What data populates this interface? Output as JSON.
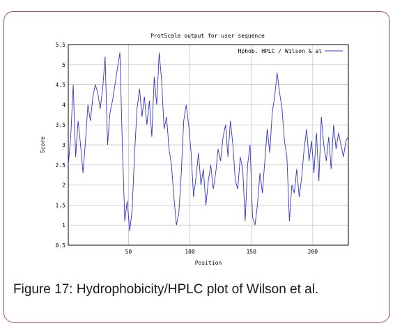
{
  "caption": "Figure 17: Hydrophobicity/HPLC plot of Wilson et al.",
  "chart_data": {
    "type": "line",
    "title": "ProtScale output for user sequence",
    "xlabel": "Position",
    "ylabel": "Score",
    "xlim": [
      1,
      229
    ],
    "ylim": [
      0.5,
      5.5
    ],
    "xticks": [
      50,
      100,
      150,
      200
    ],
    "yticks": [
      0.5,
      1,
      1.5,
      2,
      2.5,
      3,
      3.5,
      4,
      4.5,
      5,
      5.5
    ],
    "ytick_labels": [
      "0.5",
      "1",
      "1.5",
      "2",
      "2.5",
      "3",
      "3.5",
      "4",
      "4.5",
      "5",
      "5.5"
    ],
    "grid": true,
    "legend_position": "top-right",
    "line_color": "#3333cc",
    "series": [
      {
        "name": "Hphob. HPLC / Wilson & al",
        "x": [
          1,
          3,
          5,
          7,
          9,
          11,
          13,
          15,
          17,
          19,
          21,
          23,
          25,
          27,
          29,
          31,
          33,
          35,
          37,
          39,
          41,
          43,
          45,
          47,
          49,
          51,
          53,
          55,
          57,
          59,
          61,
          63,
          65,
          67,
          69,
          71,
          73,
          75,
          77,
          79,
          81,
          83,
          85,
          87,
          89,
          91,
          93,
          95,
          97,
          99,
          101,
          103,
          105,
          107,
          109,
          111,
          113,
          115,
          117,
          119,
          121,
          123,
          125,
          127,
          129,
          131,
          133,
          135,
          137,
          139,
          141,
          143,
          145,
          147,
          149,
          151,
          153,
          155,
          157,
          159,
          161,
          163,
          165,
          167,
          169,
          171,
          173,
          175,
          177,
          179,
          181,
          183,
          185,
          187,
          189,
          191,
          193,
          195,
          197,
          199,
          201,
          203,
          205,
          207,
          209,
          211,
          213,
          215,
          217,
          219,
          221,
          223,
          225,
          227,
          229
        ],
        "values": [
          2.5,
          3.2,
          4.5,
          2.7,
          3.6,
          3.0,
          2.3,
          3.1,
          4.0,
          3.6,
          4.2,
          4.5,
          4.3,
          3.9,
          4.4,
          5.2,
          3.0,
          3.8,
          4.1,
          4.5,
          4.9,
          5.3,
          3.0,
          1.1,
          1.6,
          0.85,
          1.4,
          2.8,
          3.9,
          4.4,
          3.7,
          4.2,
          3.5,
          4.1,
          3.2,
          4.7,
          4.0,
          5.3,
          4.6,
          3.4,
          3.7,
          2.9,
          2.5,
          1.7,
          1.0,
          1.3,
          2.3,
          3.6,
          4.0,
          3.5,
          2.8,
          1.7,
          2.2,
          2.8,
          2.0,
          2.4,
          1.5,
          2.1,
          2.5,
          1.9,
          2.3,
          2.9,
          2.6,
          3.2,
          3.5,
          2.7,
          3.6,
          3.0,
          2.1,
          1.9,
          2.7,
          2.4,
          1.1,
          2.5,
          3.0,
          1.2,
          1.0,
          1.5,
          2.3,
          1.8,
          2.6,
          3.4,
          2.8,
          3.8,
          4.2,
          4.8,
          4.3,
          3.9,
          3.1,
          2.7,
          1.1,
          2.0,
          1.8,
          2.4,
          1.7,
          2.2,
          2.9,
          3.4,
          2.6,
          3.1,
          2.3,
          3.3,
          2.1,
          3.7,
          3.0,
          2.6,
          3.2,
          2.4,
          3.5,
          2.9,
          3.3,
          3.0,
          2.7,
          3.1,
          3.2
        ]
      }
    ]
  }
}
